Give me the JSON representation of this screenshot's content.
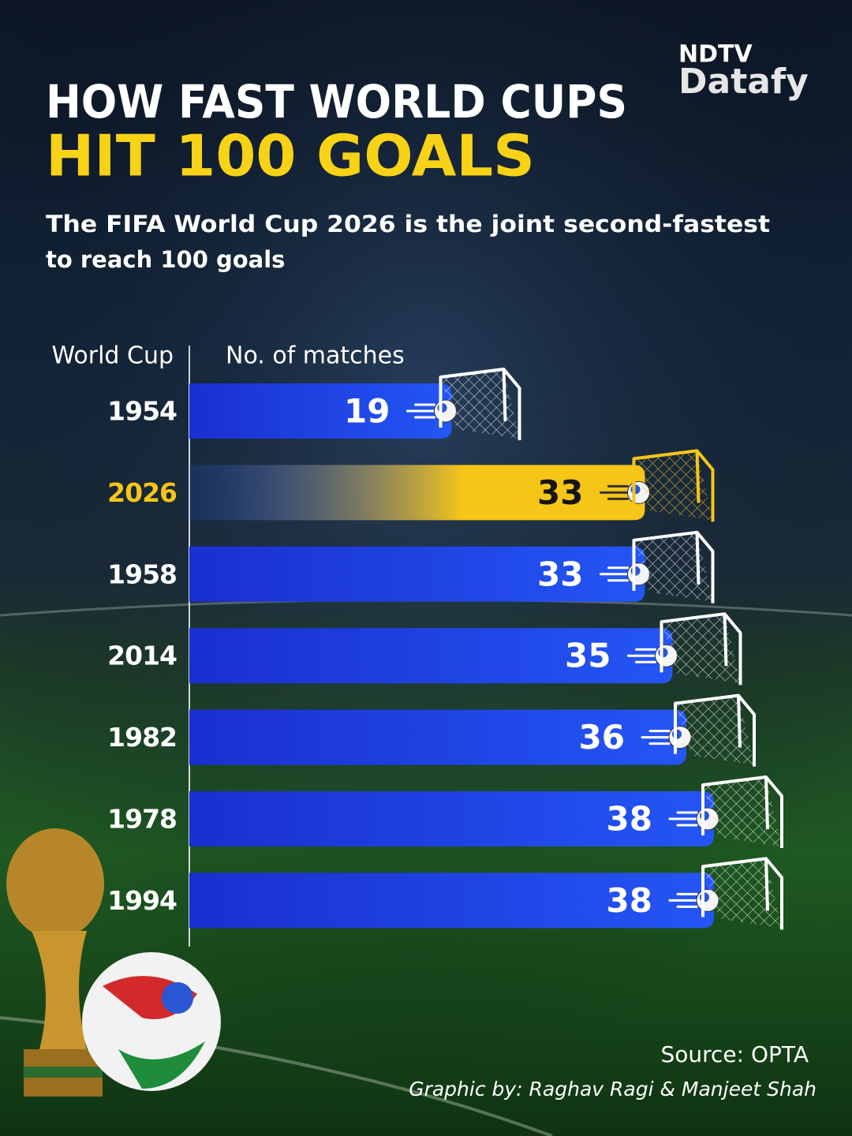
{
  "logo": {
    "brand": "NDTV",
    "product": "Datafy"
  },
  "chart_data": {
    "type": "bar",
    "orientation": "horizontal",
    "title": [
      "HOW FAST WORLD CUPS",
      "HIT 100 GOALS"
    ],
    "subtitle": [
      "The FIFA World Cup 2026 is the joint second-fastest",
      "to reach 100 goals"
    ],
    "category_axis_label": "World Cup",
    "value_axis_label": "No. of matches",
    "categories": [
      "1954",
      "2026",
      "1958",
      "2014",
      "1982",
      "1978",
      "1994"
    ],
    "values": [
      19,
      33,
      33,
      35,
      36,
      38,
      38
    ],
    "color": "#2456f5",
    "colors": [
      "#2456f5",
      "#f5c518",
      "#2456f5",
      "#2456f5",
      "#2456f5",
      "#2456f5",
      "#2456f5"
    ],
    "source": "Source: OPTA",
    "credit": "Graphic by: Raghav Ragi & Manjeet Shah"
  }
}
